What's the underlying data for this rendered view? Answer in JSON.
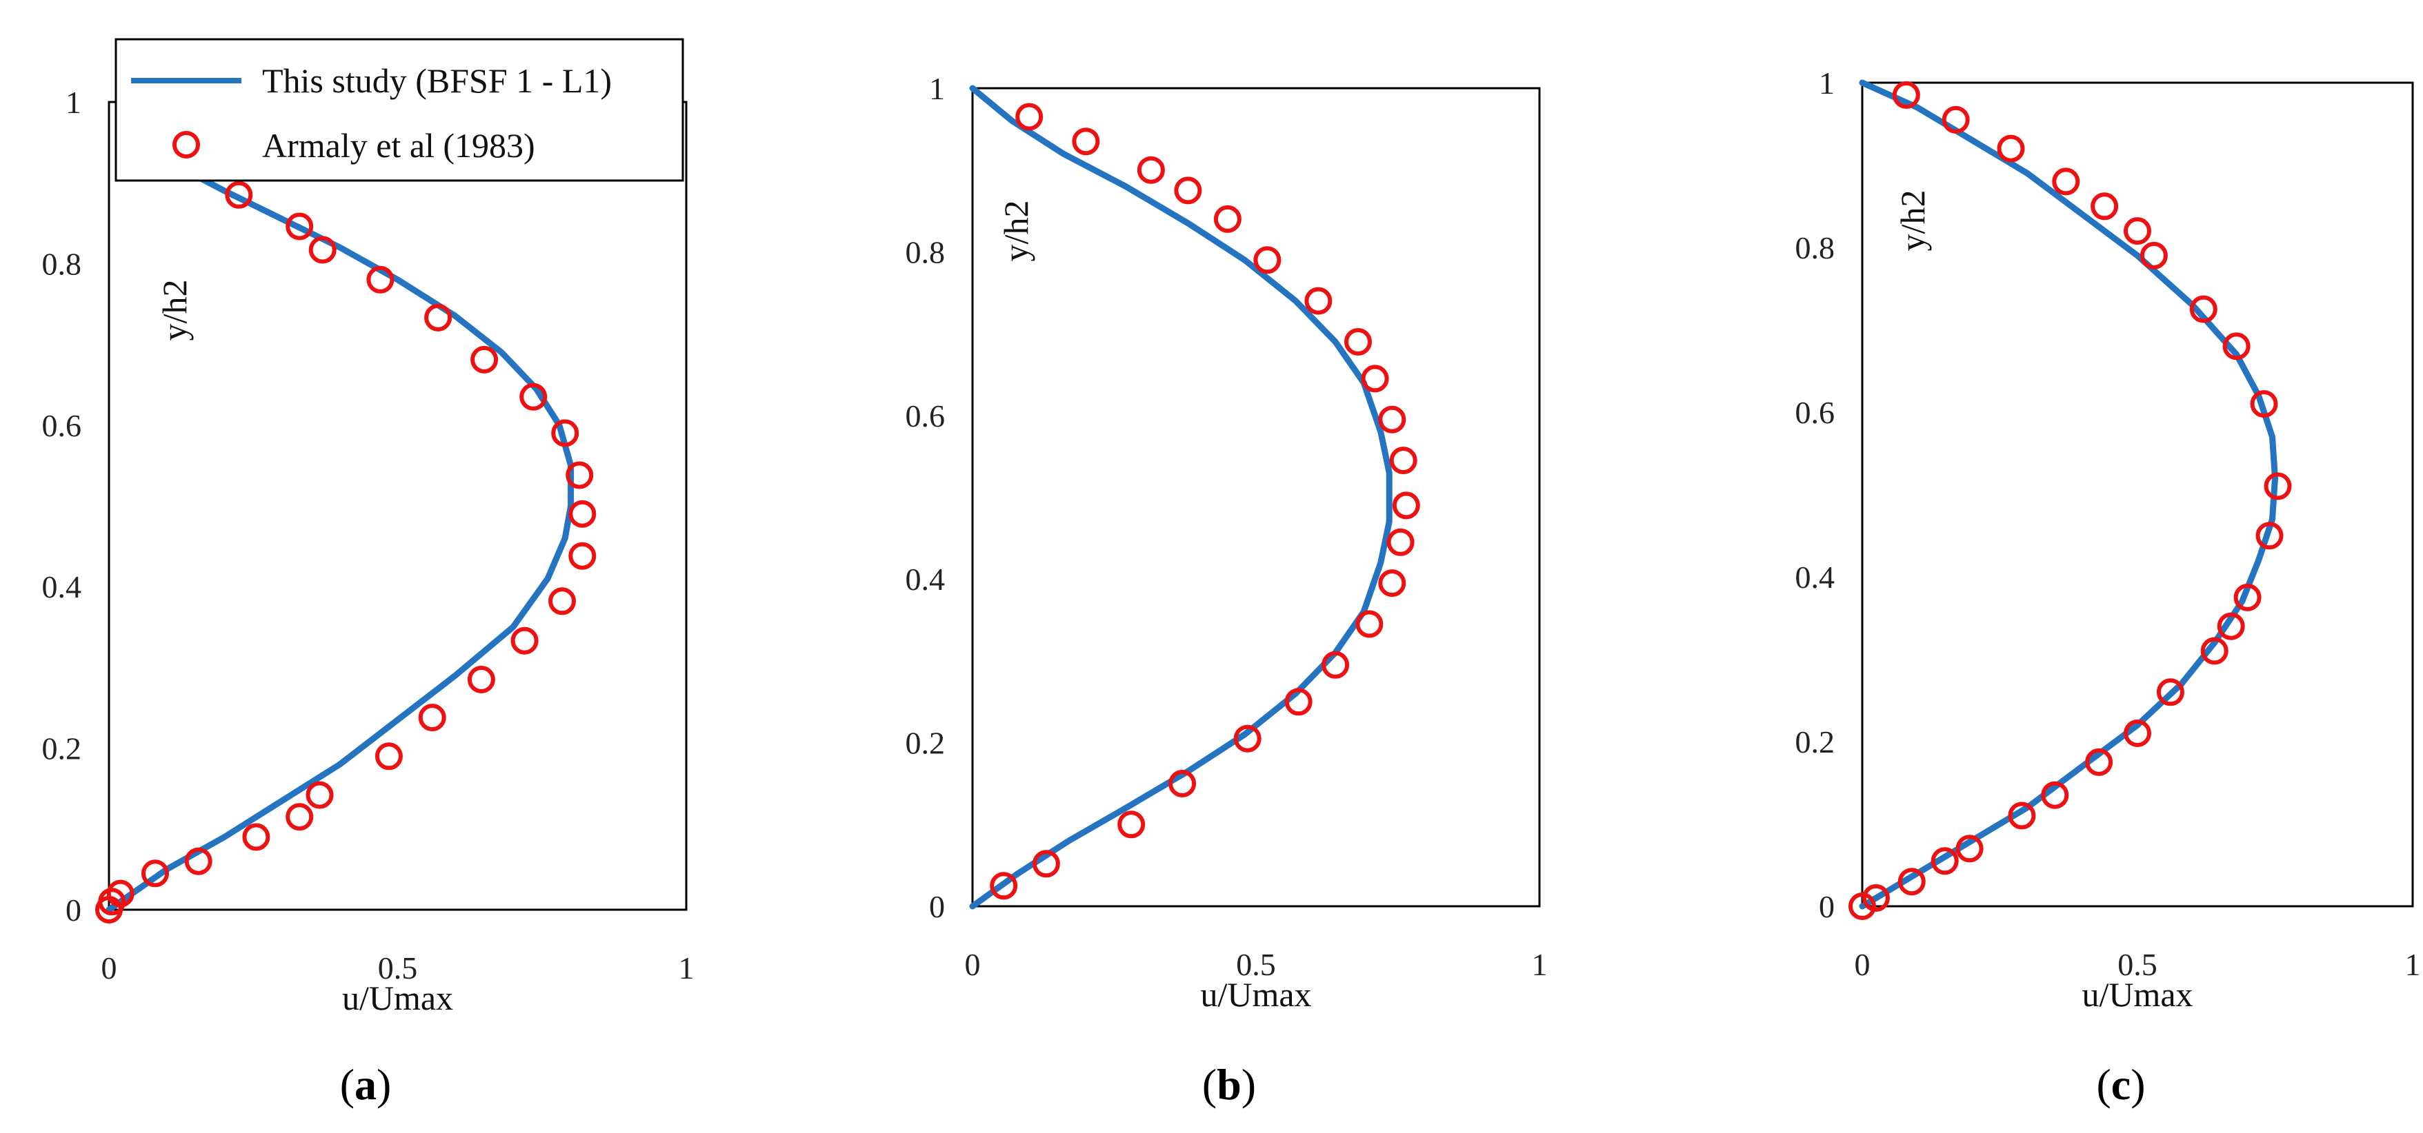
{
  "colors": {
    "line": "#2474c2",
    "marker": "#ee1111",
    "frame": "#000000"
  },
  "legend": {
    "line_label": "This study (BFSF 1 - L1)",
    "marker_label": "Armaly et al (1983)"
  },
  "chart_data": [
    {
      "type": "line",
      "panel": "a",
      "label_open": "(",
      "label_letter": "a",
      "label_close": ")",
      "xlabel": "u/Umax",
      "ylabel": "y/h2",
      "xlim": [
        0,
        1
      ],
      "ylim": [
        0,
        1
      ],
      "xticks": [
        "0",
        "0.5",
        "1"
      ],
      "yticks": [
        "0",
        "0.2",
        "0.4",
        "0.6",
        "0.8",
        "1"
      ],
      "series": [
        {
          "name": "This study (BFSF 1 - L1)",
          "kind": "line",
          "x": [
            0,
            0.04,
            0.1,
            0.2,
            0.3,
            0.4,
            0.5,
            0.6,
            0.7,
            0.76,
            0.79,
            0.8,
            0.8,
            0.78,
            0.74,
            0.68,
            0.6,
            0.5,
            0.4,
            0.3,
            0.2,
            0.12
          ],
          "y": [
            0,
            0.02,
            0.05,
            0.09,
            0.135,
            0.18,
            0.235,
            0.29,
            0.35,
            0.41,
            0.46,
            0.5,
            0.55,
            0.6,
            0.645,
            0.69,
            0.735,
            0.78,
            0.82,
            0.855,
            0.89,
            0.92
          ]
        },
        {
          "name": "Armaly et al (1983)",
          "kind": "marker",
          "x": [
            0,
            0.005,
            0.02,
            0.08,
            0.155,
            0.255,
            0.33,
            0.365,
            0.485,
            0.56,
            0.645,
            0.72,
            0.785,
            0.82,
            0.82,
            0.815,
            0.79,
            0.735,
            0.65,
            0.57,
            0.47,
            0.37,
            0.33,
            0.225
          ],
          "y": [
            0,
            0.01,
            0.02,
            0.045,
            0.06,
            0.09,
            0.115,
            0.142,
            0.19,
            0.238,
            0.285,
            0.333,
            0.382,
            0.438,
            0.49,
            0.538,
            0.59,
            0.635,
            0.681,
            0.733,
            0.78,
            0.817,
            0.846,
            0.885
          ]
        }
      ]
    },
    {
      "type": "line",
      "panel": "b",
      "label_open": "(",
      "label_letter": "b",
      "label_close": ")",
      "xlabel": "u/Umax",
      "ylabel": "y/h2",
      "xlim": [
        0,
        1
      ],
      "ylim": [
        0,
        1
      ],
      "xticks": [
        "0",
        "0.5",
        "1"
      ],
      "yticks": [
        "0",
        "0.2",
        "0.4",
        "0.6",
        "0.8",
        "1"
      ],
      "series": [
        {
          "name": "This study (BFSF 1 - L1)",
          "kind": "line",
          "x": [
            0,
            0.08,
            0.17,
            0.27,
            0.38,
            0.48,
            0.57,
            0.64,
            0.69,
            0.72,
            0.735,
            0.735,
            0.72,
            0.69,
            0.64,
            0.57,
            0.48,
            0.38,
            0.27,
            0.16,
            0.07,
            0
          ],
          "y": [
            0,
            0.04,
            0.08,
            0.12,
            0.165,
            0.21,
            0.26,
            0.31,
            0.36,
            0.42,
            0.47,
            0.53,
            0.58,
            0.64,
            0.69,
            0.74,
            0.79,
            0.835,
            0.88,
            0.92,
            0.96,
            1.0
          ]
        },
        {
          "name": "Armaly et al (1983)",
          "kind": "marker",
          "x": [
            0.055,
            0.13,
            0.28,
            0.37,
            0.485,
            0.575,
            0.64,
            0.7,
            0.74,
            0.755,
            0.765,
            0.76,
            0.74,
            0.71,
            0.68,
            0.61,
            0.52,
            0.45,
            0.38,
            0.315,
            0.2,
            0.1
          ],
          "y": [
            0.025,
            0.052,
            0.1,
            0.15,
            0.205,
            0.25,
            0.295,
            0.345,
            0.395,
            0.445,
            0.49,
            0.545,
            0.595,
            0.645,
            0.69,
            0.74,
            0.79,
            0.84,
            0.875,
            0.9,
            0.935,
            0.965
          ]
        }
      ]
    },
    {
      "type": "line",
      "panel": "c",
      "label_open": "(",
      "label_letter": "c",
      "label_close": ")",
      "xlabel": "u/Umax",
      "ylabel": "y/h2",
      "xlim": [
        0,
        1
      ],
      "ylim": [
        0,
        1
      ],
      "xticks": [
        "0",
        "0.5",
        "1"
      ],
      "yticks": [
        "0",
        "0.2",
        "0.4",
        "0.6",
        "0.8",
        "1"
      ],
      "series": [
        {
          "name": "This study (BFSF 1 - L1)",
          "kind": "line",
          "x": [
            0,
            0.1,
            0.2,
            0.3,
            0.4,
            0.5,
            0.58,
            0.64,
            0.69,
            0.72,
            0.745,
            0.75,
            0.745,
            0.72,
            0.68,
            0.6,
            0.5,
            0.4,
            0.3,
            0.2,
            0.1,
            0
          ],
          "y": [
            0,
            0.04,
            0.08,
            0.12,
            0.17,
            0.22,
            0.27,
            0.32,
            0.37,
            0.42,
            0.47,
            0.52,
            0.57,
            0.62,
            0.67,
            0.73,
            0.79,
            0.84,
            0.89,
            0.93,
            0.97,
            1.0
          ]
        },
        {
          "name": "Armaly et al (1983)",
          "kind": "marker",
          "x": [
            0,
            0.025,
            0.09,
            0.15,
            0.195,
            0.29,
            0.35,
            0.43,
            0.5,
            0.56,
            0.64,
            0.67,
            0.7,
            0.74,
            0.755,
            0.73,
            0.68,
            0.62,
            0.53,
            0.5,
            0.44,
            0.37,
            0.27,
            0.17,
            0.08
          ],
          "y": [
            0,
            0.01,
            0.03,
            0.055,
            0.07,
            0.11,
            0.135,
            0.175,
            0.21,
            0.26,
            0.31,
            0.34,
            0.375,
            0.45,
            0.51,
            0.61,
            0.68,
            0.725,
            0.79,
            0.82,
            0.85,
            0.88,
            0.92,
            0.955,
            0.985
          ]
        }
      ]
    }
  ]
}
